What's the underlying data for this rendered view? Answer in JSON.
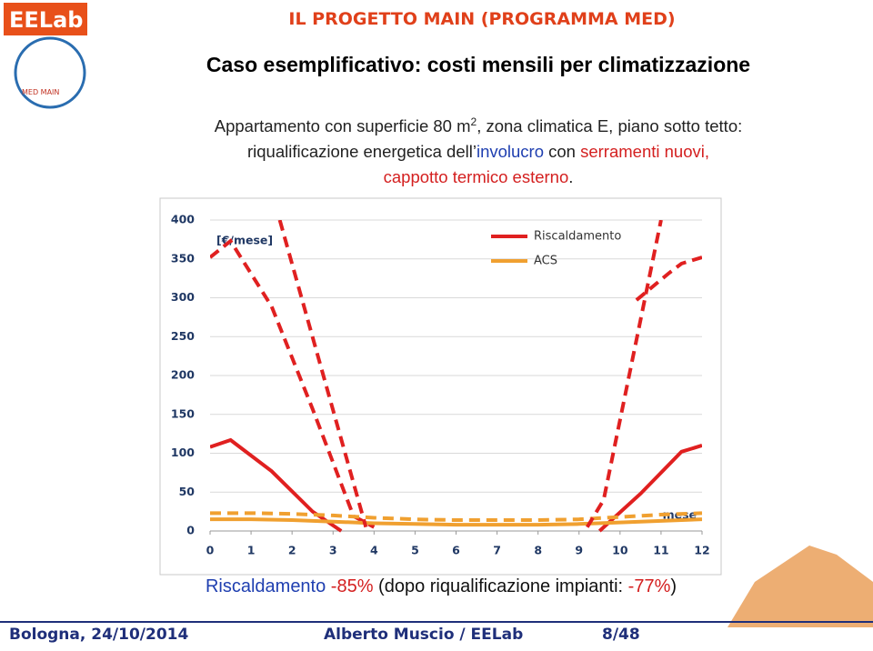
{
  "header": {
    "title": "IL PROGETTO MAIN (PROGRAMMA MED)",
    "subtitle": "Caso esemplificativo: costi mensili per climatizzazione"
  },
  "logo": {
    "brand": "EELab",
    "program": "MED MAIN"
  },
  "description": {
    "lines": [
      [
        {
          "text": "Appartamento con superficie 80 m",
          "color": "#222"
        },
        {
          "text": "2",
          "color": "#222",
          "sup": true
        },
        {
          "text": ", zona climatica E, piano sotto tetto:",
          "color": "#222"
        }
      ],
      [
        {
          "text": "riqualificazione energetica dell’",
          "color": "#222"
        },
        {
          "text": "involucro",
          "color": "#1f3fb0"
        },
        {
          "text": " con ",
          "color": "#222"
        },
        {
          "text": "serramenti nuovi,",
          "color": "#d42020"
        }
      ],
      [
        {
          "text": "cappotto termico esterno",
          "color": "#d42020"
        },
        {
          "text": ".",
          "color": "#222"
        }
      ]
    ]
  },
  "chart_data": {
    "type": "line",
    "unit_label": "[€/mese]",
    "x_label": "mese",
    "xlim": [
      0,
      12
    ],
    "xticks": [
      0,
      1,
      2,
      3,
      4,
      5,
      6,
      7,
      8,
      9,
      10,
      11,
      12
    ],
    "ylim": [
      0,
      400
    ],
    "yticks": [
      0,
      50,
      100,
      150,
      200,
      250,
      300,
      350,
      400
    ],
    "grid": true,
    "legend": "top-right",
    "series": [
      {
        "name": "Riscaldamento",
        "color": "#e02020",
        "dashed": false,
        "x": [
          0,
          0.5,
          1.5,
          2.5,
          3.2,
          null,
          9.5,
          10.5,
          11.5,
          12
        ],
        "values": [
          108,
          117,
          77,
          25,
          0,
          null,
          0,
          48,
          102,
          110
        ]
      },
      {
        "color": "#e02020",
        "dashed": true,
        "x": [
          0,
          0.5,
          1.5,
          2.5,
          3.5,
          4,
          null,
          10.4,
          11.2,
          11.5,
          12
        ],
        "values": [
          352,
          373,
          289,
          157,
          19,
          5,
          null,
          297,
          332,
          344,
          352
        ]
      },
      {
        "name": "ACS",
        "color": "#f0a030",
        "dashed": false,
        "x": [
          0,
          1,
          2,
          3,
          4,
          5,
          6,
          7,
          8,
          9,
          10,
          11,
          12
        ],
        "values": [
          15,
          15,
          14,
          12,
          10,
          9,
          8,
          8,
          8,
          9,
          11,
          13,
          15
        ]
      },
      {
        "color": "#f0a030",
        "dashed": true,
        "x": [
          0,
          1,
          2,
          3,
          4,
          5,
          6,
          7,
          8,
          9,
          10,
          11,
          12
        ],
        "values": [
          23,
          23,
          22,
          20,
          17,
          15,
          14,
          14,
          14,
          15,
          18,
          21,
          23
        ]
      },
      {
        "color": "#e02020",
        "dashed": true,
        "x": [
          1.7,
          3.8,
          null,
          9.2,
          9.6,
          11
        ],
        "values": [
          400,
          5,
          null,
          5,
          40,
          400
        ]
      }
    ]
  },
  "result": [
    {
      "text": "Riscaldamento",
      "color": "#1f3fb0"
    },
    {
      "text": " -85%",
      "color": "#d42020"
    },
    {
      "text": " (dopo riqualificazione impianti: ",
      "color": "#111"
    },
    {
      "text": "-77%",
      "color": "#d42020"
    },
    {
      "text": ")",
      "color": "#111"
    }
  ],
  "footer": {
    "place_date": "Bologna, 24/10/2014",
    "author": "Alberto Muscio / EELab",
    "page": "8/48"
  }
}
